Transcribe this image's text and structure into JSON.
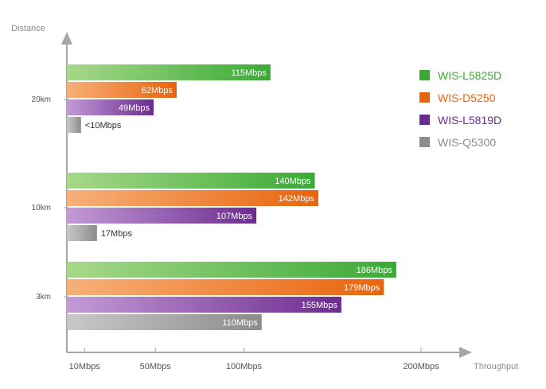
{
  "chart_data": {
    "type": "bar",
    "orientation": "horizontal",
    "ylabel": "Distance",
    "xlabel": "Throughput",
    "categories": [
      "20km",
      "10km",
      "3km"
    ],
    "x_ticks": [
      {
        "value": 10,
        "label": "10Mbps"
      },
      {
        "value": 50,
        "label": "50Mbps"
      },
      {
        "value": 100,
        "label": "100Mbps"
      },
      {
        "value": 200,
        "label": "200Mbps"
      }
    ],
    "xlim": [
      0,
      215
    ],
    "series": [
      {
        "name": "WIS-L5825D",
        "color": "#3aaa35",
        "light": "#a8d88a",
        "values": [
          115,
          140,
          186
        ],
        "labels": [
          "115Mbps",
          "140Mbps",
          "186Mbps"
        ]
      },
      {
        "name": "WIS-D5250",
        "color": "#e8640c",
        "light": "#f7b07a",
        "values": [
          62,
          142,
          179
        ],
        "labels": [
          "62Mbps",
          "142Mbps",
          "179Mbps"
        ]
      },
      {
        "name": "WIS-L5819D",
        "color": "#6b2c8f",
        "light": "#c49ad6",
        "values": [
          49,
          107,
          155
        ],
        "labels": [
          "49Mbps",
          "107Mbps",
          "155Mbps"
        ]
      },
      {
        "name": "WIS-Q5300",
        "color": "#8c8c8c",
        "light": "#c8c8c8",
        "values": [
          8,
          17,
          110
        ],
        "labels": [
          "<10Mbps",
          "17Mbps",
          "110Mbps"
        ]
      }
    ],
    "legend_position": "right",
    "grid": false
  }
}
